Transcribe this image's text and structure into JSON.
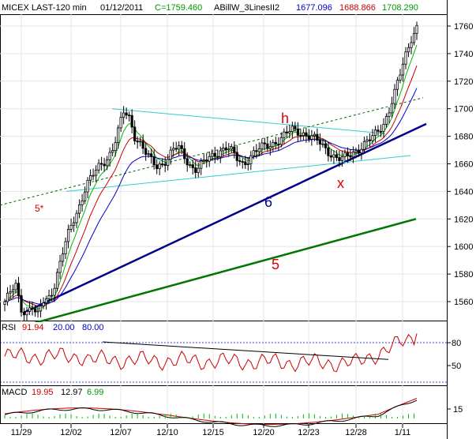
{
  "header": {
    "symbol": "MICEX LAST-120 min",
    "date": "01/12/2011",
    "close_label": "C=1759.460",
    "indicator": "ABillW_3LinesII2",
    "values": [
      "1677.096",
      "1688.866",
      "1708.290"
    ],
    "value_colors": [
      "#0000cc",
      "#cc0000",
      "#009900"
    ]
  },
  "rsi_header": {
    "label": "RSI",
    "values": [
      "91.94",
      "20.00",
      "80.00"
    ],
    "colors": [
      "#cc0000",
      "#0000cc",
      "#0000cc"
    ]
  },
  "macd_header": {
    "label": "MACD",
    "values": [
      "19.95",
      "12.97",
      "6.99"
    ],
    "colors": [
      "#cc0000",
      "#000000",
      "#009900"
    ]
  },
  "annotations": {
    "h": "h",
    "x": "x",
    "line6": "6",
    "line5": "5",
    "line5star": "5*"
  },
  "colors": {
    "candle": "#000000",
    "ma_green": "#00bb00",
    "ma_red": "#cc0000",
    "ma_blue": "#0000cc",
    "trend_blue": "#00008b",
    "trend_green": "#007700",
    "channel_cyan": "#33cccc",
    "annotation_red": "#dd0000"
  },
  "chart_data": [
    {
      "type": "candlestick",
      "pane": "price",
      "x_ticks": [
        "11/29",
        "12/02",
        "12/07",
        "12/10",
        "12/15",
        "12/20",
        "12/23",
        "12/28",
        "1/11"
      ],
      "y_ticks": [
        1560,
        1580,
        1600,
        1620,
        1640,
        1660,
        1680,
        1700,
        1720,
        1740,
        1760
      ],
      "ylim": [
        1540,
        1770
      ],
      "close_path": [
        1560,
        1566,
        1572,
        1555,
        1552,
        1558,
        1548,
        1560,
        1562,
        1570,
        1585,
        1600,
        1612,
        1622,
        1632,
        1645,
        1650,
        1656,
        1660,
        1665,
        1672,
        1685,
        1698,
        1693,
        1680,
        1675,
        1668,
        1662,
        1658,
        1660,
        1664,
        1670,
        1672,
        1666,
        1660,
        1656,
        1658,
        1662,
        1665,
        1668,
        1670,
        1672,
        1668,
        1663,
        1660,
        1664,
        1668,
        1671,
        1673,
        1674,
        1676,
        1678,
        1682,
        1685,
        1684,
        1682,
        1680,
        1678,
        1676,
        1672,
        1668,
        1664,
        1663,
        1665,
        1668,
        1670,
        1673,
        1676,
        1680,
        1685,
        1690,
        1700,
        1712,
        1726,
        1740,
        1752,
        1759
      ]
    },
    {
      "type": "line",
      "pane": "rsi",
      "y_ticks": [
        50,
        80
      ],
      "levels": [
        20,
        80
      ],
      "last": 91.94
    },
    {
      "type": "line",
      "pane": "macd",
      "y_ticks": [
        15
      ],
      "series": [
        {
          "name": "19.95",
          "last": 19.95
        },
        {
          "name": "12.97",
          "last": 12.97
        },
        {
          "name": "6.99",
          "last": 6.99
        }
      ]
    }
  ]
}
